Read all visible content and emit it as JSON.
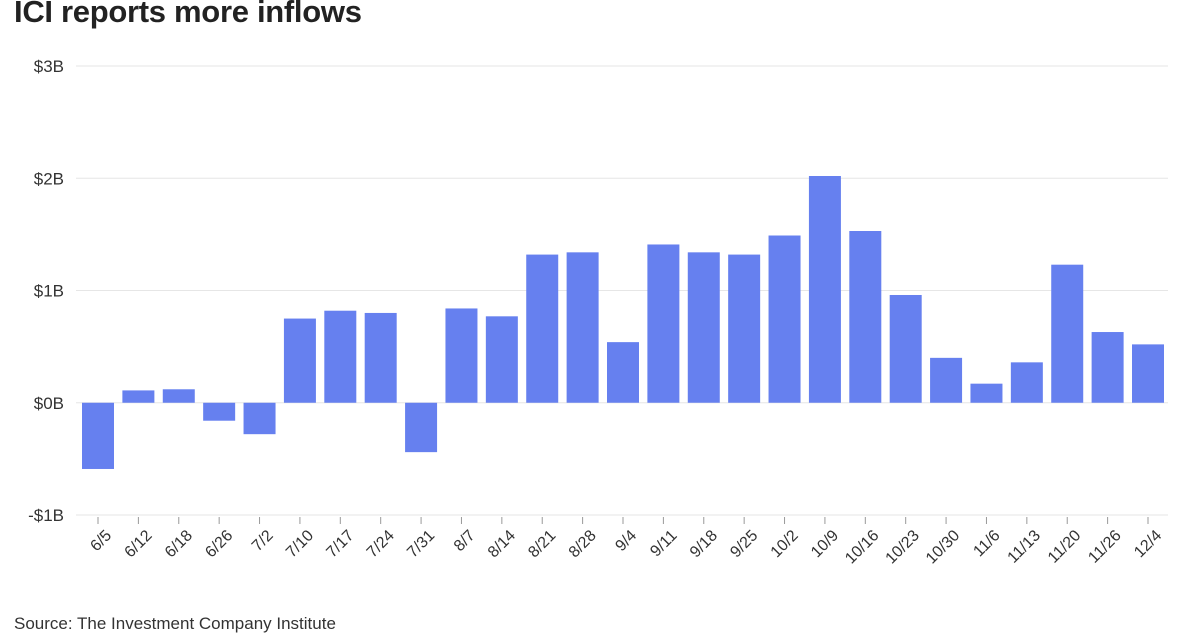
{
  "title": "ICI reports more inflows",
  "source": "Source: The Investment Company Institute",
  "colors": {
    "bar": "#6680ef"
  },
  "chart_data": {
    "type": "bar",
    "title": "ICI reports more inflows",
    "xlabel": "",
    "ylabel": "",
    "ylim": [
      -1,
      3
    ],
    "y_ticks": [
      3,
      2,
      1,
      0,
      -1
    ],
    "y_tick_labels": [
      "$3B",
      "$2B",
      "$1B",
      "$0B",
      "-$1B"
    ],
    "grid": true,
    "categories": [
      "6/5",
      "6/12",
      "6/18",
      "6/26",
      "7/2",
      "7/10",
      "7/17",
      "7/24",
      "7/31",
      "8/7",
      "8/14",
      "8/21",
      "8/28",
      "9/4",
      "9/11",
      "9/18",
      "9/25",
      "10/2",
      "10/9",
      "10/16",
      "10/23",
      "10/30",
      "11/6",
      "11/13",
      "11/20",
      "11/26",
      "12/4"
    ],
    "values": [
      -0.59,
      0.11,
      0.12,
      -0.16,
      -0.28,
      0.75,
      0.82,
      0.8,
      -0.44,
      0.84,
      0.77,
      1.32,
      1.34,
      0.54,
      1.41,
      1.34,
      1.32,
      1.49,
      2.02,
      1.53,
      0.96,
      0.4,
      0.17,
      0.36,
      1.23,
      0.63,
      0.52
    ]
  }
}
